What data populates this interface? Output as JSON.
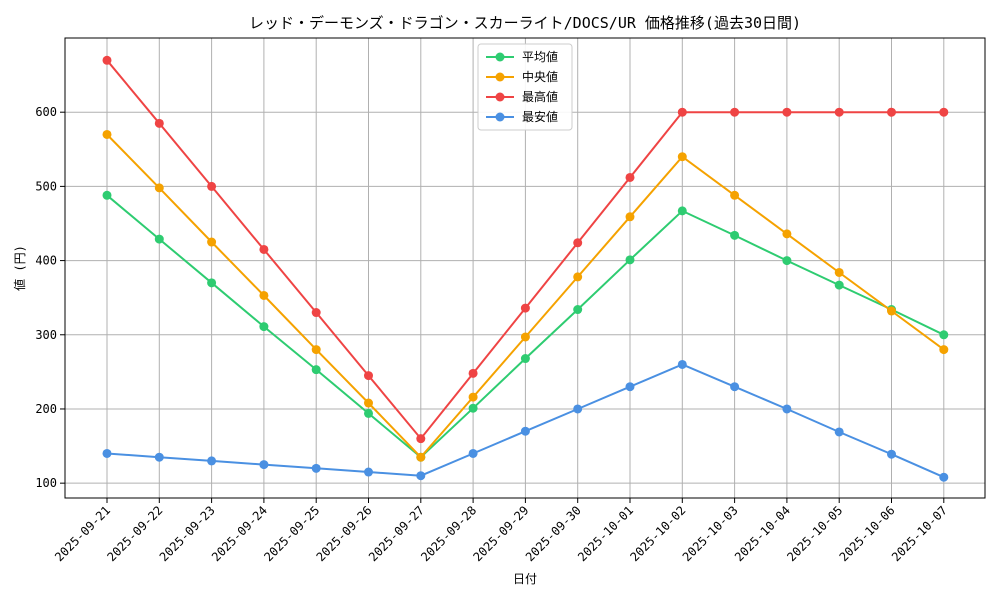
{
  "chart_data": {
    "type": "line",
    "title": "レッド・デーモンズ・ドラゴン・スカーライト/DOCS/UR 価格推移(過去30日間)",
    "xlabel": "日付",
    "ylabel": "値 (円)",
    "ylim": [
      80,
      700
    ],
    "yticks": [
      100,
      200,
      300,
      400,
      500,
      600
    ],
    "grid": true,
    "legend_position": "top-center",
    "categories": [
      "2025-09-21",
      "2025-09-22",
      "2025-09-23",
      "2025-09-24",
      "2025-09-25",
      "2025-09-26",
      "2025-09-27",
      "2025-09-28",
      "2025-09-29",
      "2025-09-30",
      "2025-10-01",
      "2025-10-02",
      "2025-10-03",
      "2025-10-04",
      "2025-10-05",
      "2025-10-06",
      "2025-10-07"
    ],
    "series": [
      {
        "name": "平均値",
        "color": "#2ecc71",
        "values": [
          488,
          429,
          370,
          311,
          253,
          194,
          135,
          201,
          268,
          334,
          401,
          467,
          434,
          400,
          367,
          334,
          300
        ]
      },
      {
        "name": "中央値",
        "color": "#f5a200",
        "values": [
          570,
          498,
          425,
          353,
          280,
          208,
          135,
          216,
          297,
          378,
          459,
          540,
          488,
          436,
          384,
          332,
          280
        ]
      },
      {
        "name": "最高値",
        "color": "#ef4444",
        "values": [
          670,
          585,
          500,
          415,
          330,
          245,
          160,
          248,
          336,
          424,
          512,
          600,
          600,
          600,
          600,
          600,
          600
        ]
      },
      {
        "name": "最安値",
        "color": "#4a90e2",
        "values": [
          140,
          135,
          130,
          125,
          120,
          115,
          110,
          140,
          170,
          200,
          230,
          260,
          230,
          200,
          169,
          139,
          108
        ]
      }
    ]
  }
}
